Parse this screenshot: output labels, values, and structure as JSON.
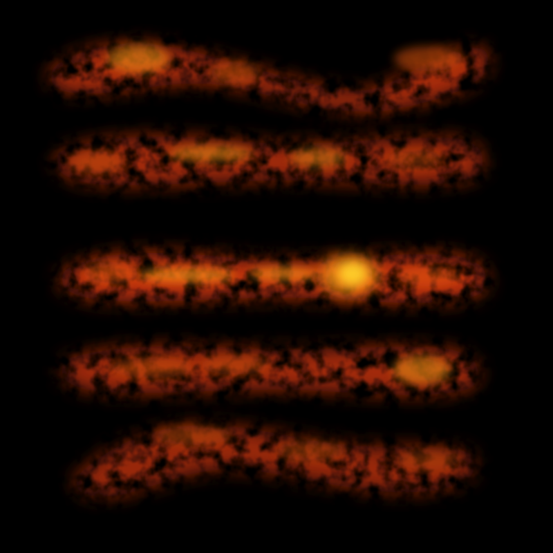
{
  "scene": {
    "subject": "glowing-ember-streaks",
    "background_color": "#000000",
    "palette": {
      "dark_ember": "#5a0a00",
      "ember_red": "#b82a04",
      "ember_orange": "#e0560a",
      "hot_orange": "#f58a14",
      "hot_yellow": "#ffd22a"
    },
    "streaks": [
      {
        "id": "streak-1",
        "brightness": 0.9
      },
      {
        "id": "streak-2",
        "brightness": 0.85
      },
      {
        "id": "streak-3",
        "brightness": 1.0
      },
      {
        "id": "streak-4",
        "brightness": 0.85
      },
      {
        "id": "streak-5",
        "brightness": 0.8
      }
    ]
  }
}
